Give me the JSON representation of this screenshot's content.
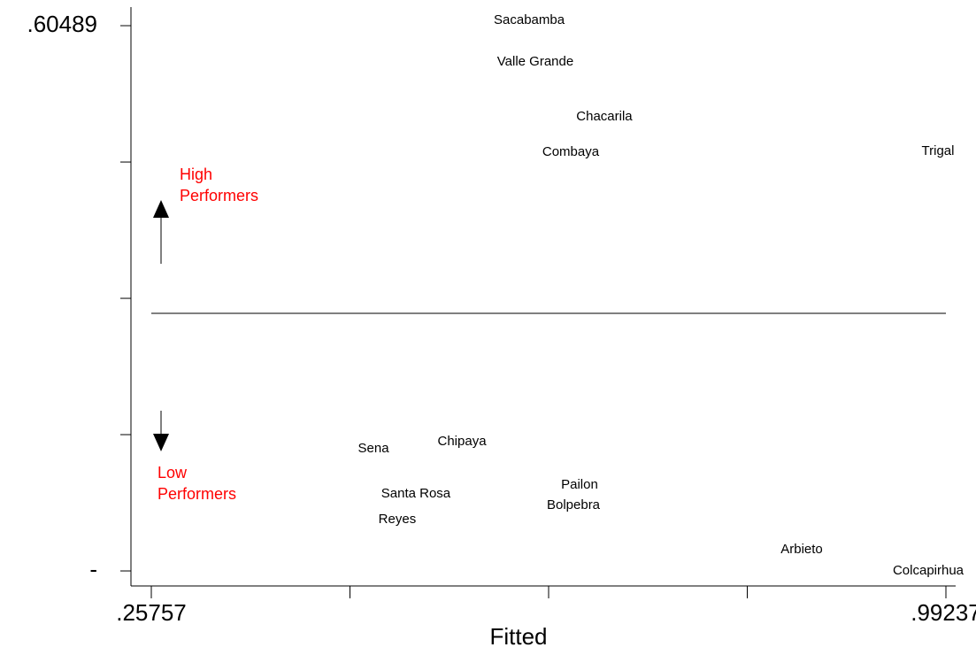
{
  "chart_data": {
    "type": "scatter",
    "x_label": "Fitted",
    "xlim": [
      0.23875,
      1.00137
    ],
    "ylim": [
      -0.5732,
      0.644
    ],
    "xticks": [
      {
        "value": 0.25757,
        "label": ".25757"
      },
      {
        "value": 0.44127,
        "label": null
      },
      {
        "value": 0.62497,
        "label": null
      },
      {
        "value": 0.80867,
        "label": null
      },
      {
        "value": 0.99237,
        "label": ".99237"
      }
    ],
    "yticks": [
      {
        "value": 0.60489,
        "label": ".60489"
      },
      {
        "value": 0.3182,
        "label": null
      },
      {
        "value": 0.0316,
        "label": null
      },
      {
        "value": -0.255,
        "label": null
      },
      {
        "value": -0.5416,
        "label": "-"
      }
    ],
    "reference_line": 0,
    "color": "#000000",
    "point_labels": [
      "Sacabamba",
      "Valle Grande",
      "Chacarila",
      "Combaya",
      "Trigal",
      "Sena",
      "Chipaya",
      "Santa Rosa",
      "Reyes",
      "Pailon",
      "Bolpebra",
      "Arbieto",
      "Colcapirhua"
    ],
    "x": [
      0.607,
      0.6127,
      0.6765,
      0.6454,
      0.985,
      0.463,
      0.5448,
      0.5022,
      0.485,
      0.6536,
      0.6479,
      0.859,
      0.976
    ],
    "y": [
      0.616,
      0.5285,
      0.4131,
      0.3387,
      0.3406,
      -0.2847,
      -0.2698,
      -0.3796,
      -0.4336,
      -0.361,
      -0.4038,
      -0.4969,
      -0.5416
    ],
    "annotations": [
      {
        "lines": [
          "High",
          "Performers"
        ],
        "color": "#ff0000",
        "direction": "up"
      },
      {
        "lines": [
          "Low",
          "Performers"
        ],
        "color": "#ff0000",
        "direction": "down"
      }
    ]
  }
}
